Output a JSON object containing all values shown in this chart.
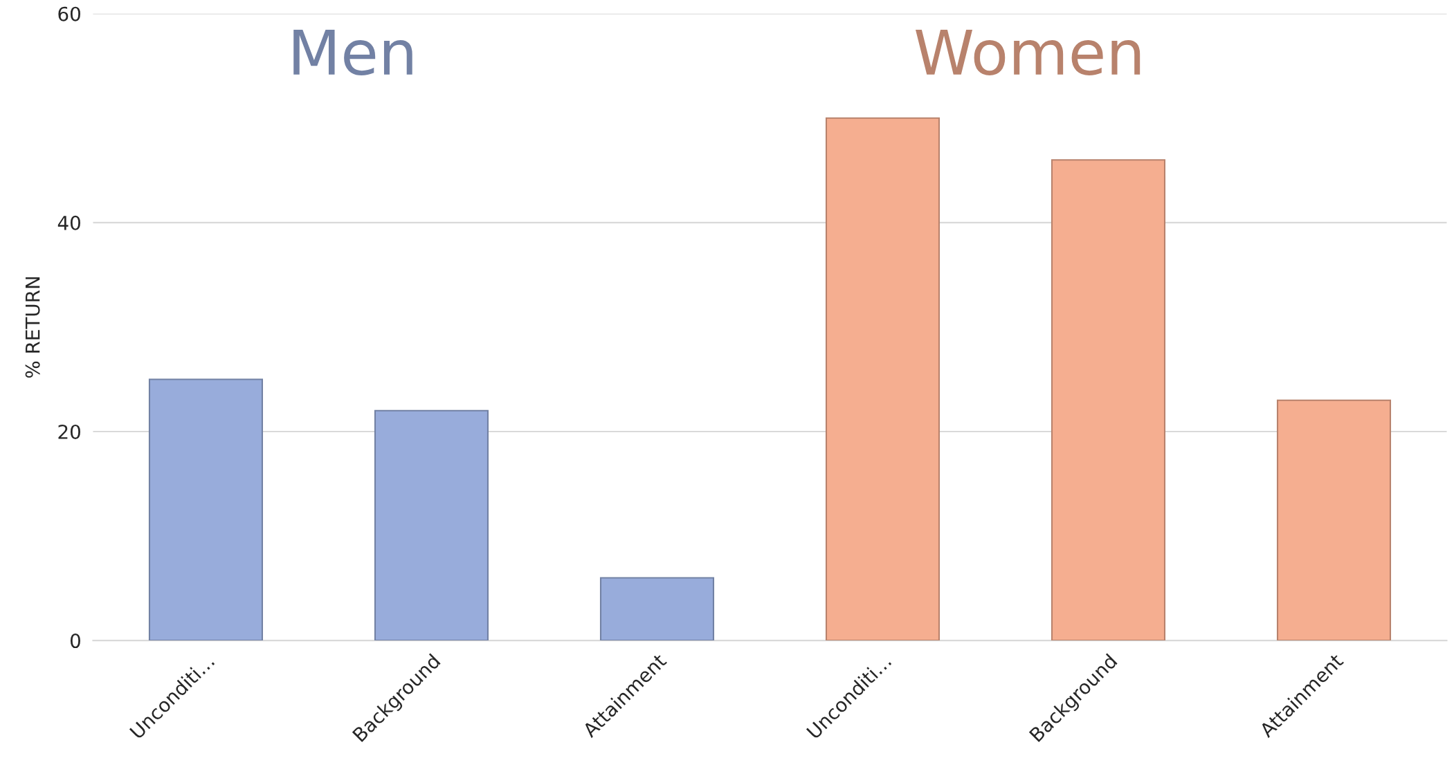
{
  "chart_data": {
    "type": "bar",
    "ylabel": "% RETURN",
    "categories": [
      "Unconditi…",
      "Background",
      "Attainment",
      "Unconditi…",
      "Background",
      "Attainment"
    ],
    "series": [
      {
        "name": "Men",
        "color": "#98acdb",
        "values": [
          25,
          22,
          6,
          null,
          null,
          null
        ]
      },
      {
        "name": "Women",
        "color": "#f5ae90",
        "values": [
          null,
          null,
          null,
          50,
          46,
          23
        ]
      }
    ],
    "ylim": [
      0,
      60
    ],
    "yticks": [
      0,
      20,
      40,
      60
    ],
    "grid": "y",
    "legend": false
  }
}
